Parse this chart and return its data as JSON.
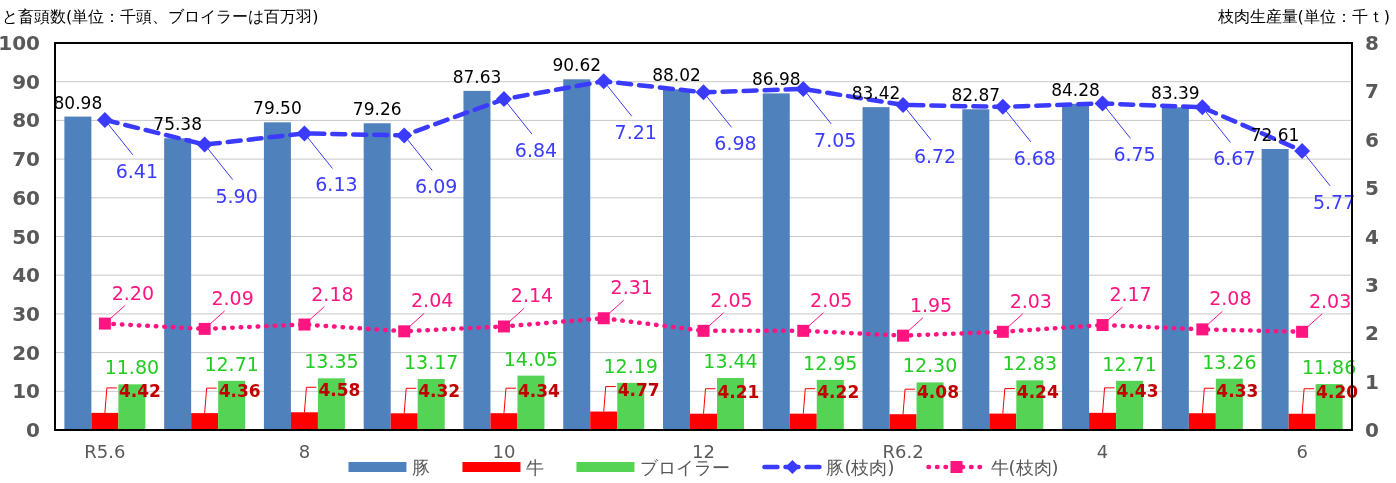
{
  "chart_data": {
    "type": "bar",
    "ylabel": "と畜頭数(単位：千頭、ブロイラーは百万羽)",
    "y2label": "枝肉生産量(単位：千ｔ)",
    "categories": [
      "R5.6",
      null,
      "8",
      null,
      "10",
      null,
      "12",
      null,
      "R6.2",
      null,
      "4",
      null,
      "6"
    ],
    "series": [
      {
        "name": "豚",
        "color": "#4f81bd",
        "values": [
          80.98,
          75.38,
          79.5,
          79.26,
          87.63,
          90.62,
          88.02,
          86.98,
          83.42,
          82.87,
          84.28,
          83.39,
          72.61
        ],
        "value_labels": [
          "80.98",
          "75.38",
          "79.50",
          "79.26",
          "87.63",
          "90.62",
          "88.02",
          "86.98",
          "83.42",
          "82.87",
          "84.28",
          "83.39",
          "72.61"
        ]
      },
      {
        "name": "牛",
        "color": "#ff0000",
        "values": [
          4.42,
          4.36,
          4.58,
          4.32,
          4.34,
          4.77,
          4.21,
          4.22,
          4.08,
          4.24,
          4.43,
          4.33,
          4.2
        ],
        "value_labels": [
          "4.42",
          "4.36",
          "4.58",
          "4.32",
          "4.34",
          "4.77",
          "4.21",
          "4.22",
          "4.08",
          "4.24",
          "4.43",
          "4.33",
          "4.20"
        ]
      },
      {
        "name": "ブロイラー",
        "color": "#55d355",
        "values": [
          11.8,
          12.71,
          13.35,
          13.17,
          14.05,
          12.19,
          13.44,
          12.95,
          12.3,
          12.83,
          12.71,
          13.26,
          11.86
        ],
        "value_labels": [
          "11.80",
          "12.71",
          "13.35",
          "13.17",
          "14.05",
          "12.19",
          "13.44",
          "12.95",
          "12.30",
          "12.83",
          "12.71",
          "13.26",
          "11.86"
        ]
      },
      {
        "name": "豚(枝肉)",
        "type": "line",
        "axis": "y2",
        "color": "#3b3bff",
        "marker": "diamond",
        "line_style": "dashed",
        "values": [
          6.41,
          5.9,
          6.13,
          6.09,
          6.84,
          7.21,
          6.98,
          7.05,
          6.72,
          6.68,
          6.75,
          6.67,
          5.77
        ],
        "value_labels": [
          "6.41",
          "5.90",
          "6.13",
          "6.09",
          "6.84",
          "7.21",
          "6.98",
          "7.05",
          "6.72",
          "6.68",
          "6.75",
          "6.67",
          "5.77"
        ]
      },
      {
        "name": "牛(枝肉)",
        "type": "line",
        "axis": "y2",
        "color": "#ff1480",
        "marker": "square",
        "line_style": "dotted",
        "values": [
          2.2,
          2.09,
          2.18,
          2.04,
          2.14,
          2.31,
          2.05,
          2.05,
          1.95,
          2.03,
          2.17,
          2.08,
          2.03
        ],
        "value_labels": [
          "2.20",
          "2.09",
          "2.18",
          "2.04",
          "2.14",
          "2.31",
          "2.05",
          "2.05",
          "1.95",
          "2.03",
          "2.17",
          "2.08",
          "2.03"
        ]
      }
    ],
    "ylim": [
      0,
      100
    ],
    "yticks": [
      0,
      10,
      20,
      30,
      40,
      50,
      60,
      70,
      80,
      90,
      100
    ],
    "y2lim": [
      0,
      8
    ],
    "y2ticks": [
      0,
      1,
      2,
      3,
      4,
      5,
      6,
      7,
      8
    ],
    "grid": "y",
    "legend": "bottom"
  }
}
